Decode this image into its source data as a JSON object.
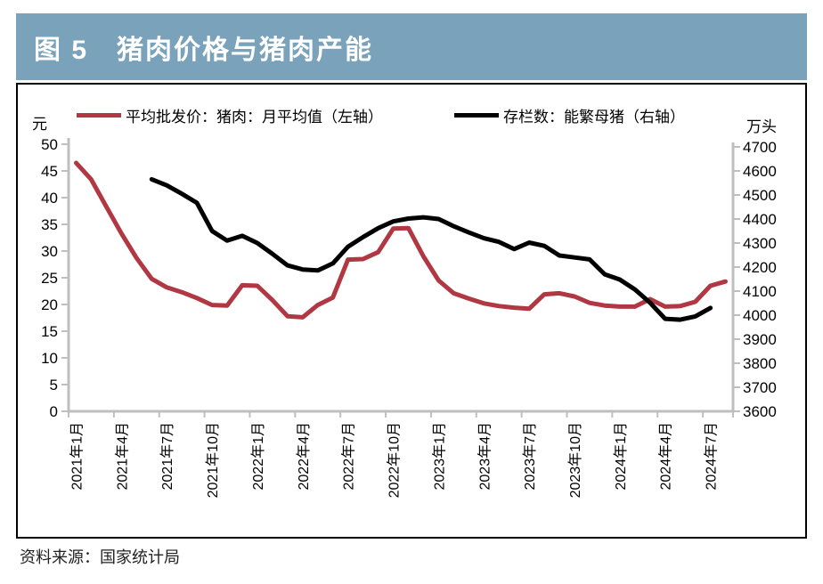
{
  "header": {
    "title": "图 5　猪肉价格与猪肉产能"
  },
  "panel": {
    "left_unit": "元",
    "right_unit": "万头"
  },
  "source_note": "资料来源：国家统计局",
  "colors": {
    "header_bg": "#7aa2bb",
    "header_text": "#ffffff",
    "axis_gray": "#bfbfbf",
    "price_red": "#b13742",
    "inventory_black": "#000000"
  },
  "chart_data": {
    "type": "line",
    "title": "图 5 猪肉价格与猪肉产能",
    "legend_position": "top",
    "grid": false,
    "left_axis": {
      "unit": "元",
      "min": 0,
      "max": 50,
      "step": 5,
      "ticks": [
        0,
        5,
        10,
        15,
        20,
        25,
        30,
        35,
        40,
        45,
        50
      ]
    },
    "right_axis": {
      "unit": "万头",
      "min": 3600,
      "max": 4700,
      "step": 100,
      "ticks": [
        3600,
        3700,
        3800,
        3900,
        4000,
        4100,
        4200,
        4300,
        4400,
        4500,
        4600,
        4700
      ]
    },
    "x_tick_labels": [
      "2021年1月",
      "2021年4月",
      "2021年7月",
      "2021年10月",
      "2022年1月",
      "2022年4月",
      "2022年7月",
      "2022年10月",
      "2023年1月",
      "2023年4月",
      "2023年7月",
      "2023年10月",
      "2024年1月",
      "2024年4月",
      "2024年7月"
    ],
    "categories": [
      "2021年1月",
      "2021年2月",
      "2021年3月",
      "2021年4月",
      "2021年5月",
      "2021年6月",
      "2021年7月",
      "2021年8月",
      "2021年9月",
      "2021年10月",
      "2021年11月",
      "2021年12月",
      "2022年1月",
      "2022年2月",
      "2022年3月",
      "2022年4月",
      "2022年5月",
      "2022年6月",
      "2022年7月",
      "2022年8月",
      "2022年9月",
      "2022年10月",
      "2022年11月",
      "2022年12月",
      "2023年1月",
      "2023年2月",
      "2023年3月",
      "2023年4月",
      "2023年5月",
      "2023年6月",
      "2023年7月",
      "2023年8月",
      "2023年9月",
      "2023年10月",
      "2023年11月",
      "2023年12月",
      "2024年1月",
      "2024年2月",
      "2024年3月",
      "2024年4月",
      "2024年5月",
      "2024年6月",
      "2024年7月",
      "2024年8月"
    ],
    "series": [
      {
        "name": "平均批发价：猪肉：月平均值（左轴）",
        "axis": "left",
        "color": "#b13742",
        "values": [
          46.5,
          43.4,
          38.3,
          33.3,
          28.7,
          24.8,
          23.2,
          22.3,
          21.2,
          19.9,
          19.8,
          23.6,
          23.5,
          20.8,
          17.8,
          17.6,
          19.9,
          21.3,
          28.4,
          28.5,
          29.8,
          34.2,
          34.3,
          29.0,
          24.5,
          22.1,
          21.1,
          20.2,
          19.7,
          19.4,
          19.2,
          21.9,
          22.1,
          21.5,
          20.3,
          19.8,
          19.6,
          19.6,
          21.0,
          19.6,
          19.7,
          20.5,
          23.5,
          24.3
        ]
      },
      {
        "name": "存栏数：能繁母猪（右轴）",
        "axis": "right",
        "color": "#000000",
        "values": [
          null,
          null,
          null,
          null,
          null,
          4565,
          4540,
          4505,
          4467,
          4350,
          4310,
          4330,
          4300,
          4255,
          4207,
          4190,
          4186,
          4215,
          4285,
          4325,
          4362,
          4390,
          4402,
          4407,
          4400,
          4370,
          4344,
          4320,
          4305,
          4275,
          4302,
          4288,
          4248,
          4240,
          4232,
          4170,
          4148,
          4107,
          4052,
          3985,
          3981,
          3995,
          4030,
          null
        ]
      }
    ]
  }
}
